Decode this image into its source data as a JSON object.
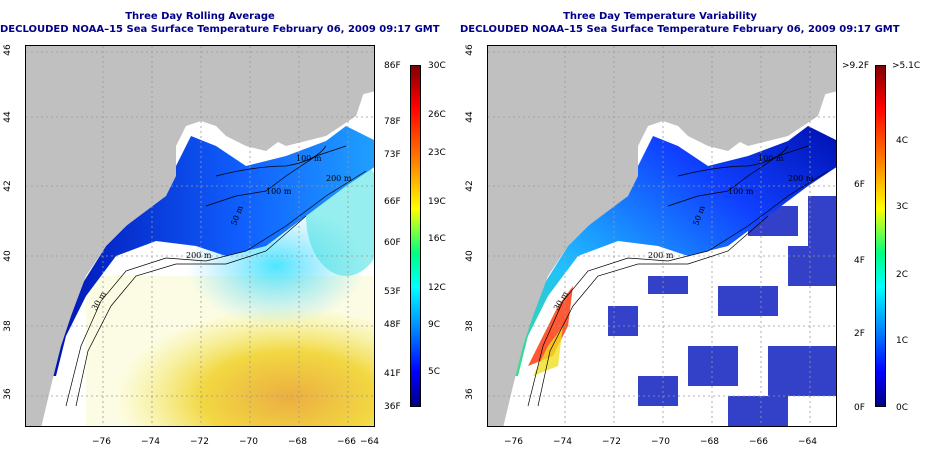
{
  "left_panel": {
    "title_line1": "Three Day Rolling Average",
    "title_line2": "DECLOUDED NOAA–15 Sea Surface Temperature February 06, 2009 09:17 GMT",
    "contour_labels": [
      "100 m",
      "100 m",
      "200 m",
      "50 m",
      "200 m",
      "30 m"
    ],
    "colorbar": {
      "fahrenheit": [
        "86F",
        "78F",
        "73F",
        "66F",
        "60F",
        "53F",
        "48F",
        "41F",
        "36F"
      ],
      "celsius": [
        "30C",
        "26C",
        "23C",
        "19C",
        "16C",
        "12C",
        "9C",
        "5C"
      ]
    }
  },
  "right_panel": {
    "title_line1": "Three Day Temperature Variability",
    "title_line2": "DECLOUDED NOAA–15 Sea Surface Temperature February 06, 2009 09:17 GMT",
    "contour_labels": [
      "100 m",
      "100 m",
      "200 m",
      "50 m",
      "200 m",
      "30 m"
    ],
    "colorbar": {
      "fahrenheit": [
        ">9.2F",
        "6F",
        "4F",
        "2F",
        "0F"
      ],
      "celsius": [
        ">5.1C",
        "4C",
        "3C",
        "2C",
        "1C",
        "0C"
      ]
    }
  },
  "axes": {
    "lon_ticks": [
      "−76",
      "−74",
      "−72",
      "−70",
      "−68",
      "−66",
      "−64"
    ],
    "lat_ticks": [
      "36",
      "38",
      "40",
      "42",
      "44",
      "46"
    ]
  },
  "colors": {
    "land": "#c0c0c0",
    "title": "#00008b",
    "water_no_data": "#ffffff",
    "grid": "#999999"
  }
}
